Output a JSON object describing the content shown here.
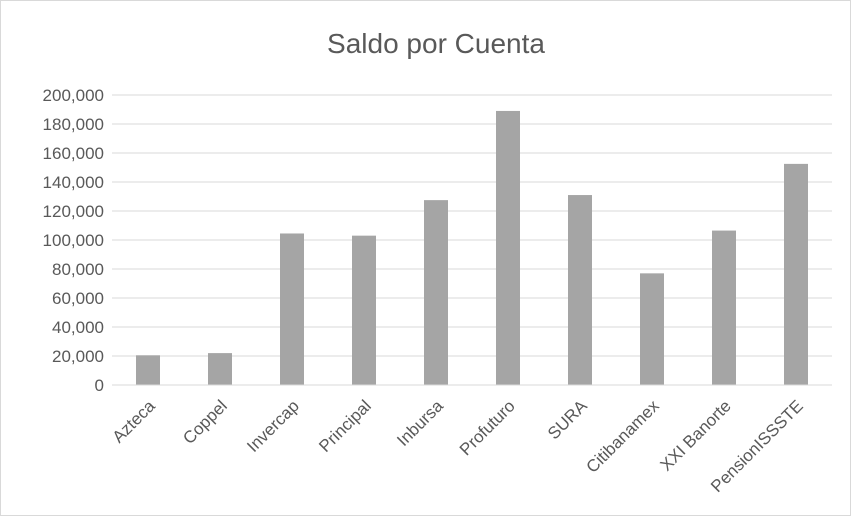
{
  "chart_data": {
    "type": "bar",
    "title": "Saldo por Cuenta",
    "xlabel": "",
    "ylabel": "",
    "categories": [
      "Azteca",
      "Coppel",
      "Invercap",
      "Principal",
      "Inbursa",
      "Profuturo",
      "SURA",
      "Citibanamex",
      "XXI Banorte",
      "PensionISSSTE"
    ],
    "values": [
      20500,
      22000,
      104500,
      103000,
      127500,
      189000,
      131000,
      77000,
      106500,
      152500
    ],
    "ylim": [
      0,
      200000
    ],
    "yticks": [
      "0",
      "20,000",
      "40,000",
      "60,000",
      "80,000",
      "100,000",
      "120,000",
      "140,000",
      "160,000",
      "180,000",
      "200,000"
    ],
    "ytick_values": [
      0,
      20000,
      40000,
      60000,
      80000,
      100000,
      120000,
      140000,
      160000,
      180000,
      200000
    ],
    "grid": true,
    "legend": "none",
    "colors": {
      "bar": "#a5a5a5",
      "grid": "#d9d9d9",
      "text": "#595959",
      "frame": "#d9d9d9"
    }
  }
}
